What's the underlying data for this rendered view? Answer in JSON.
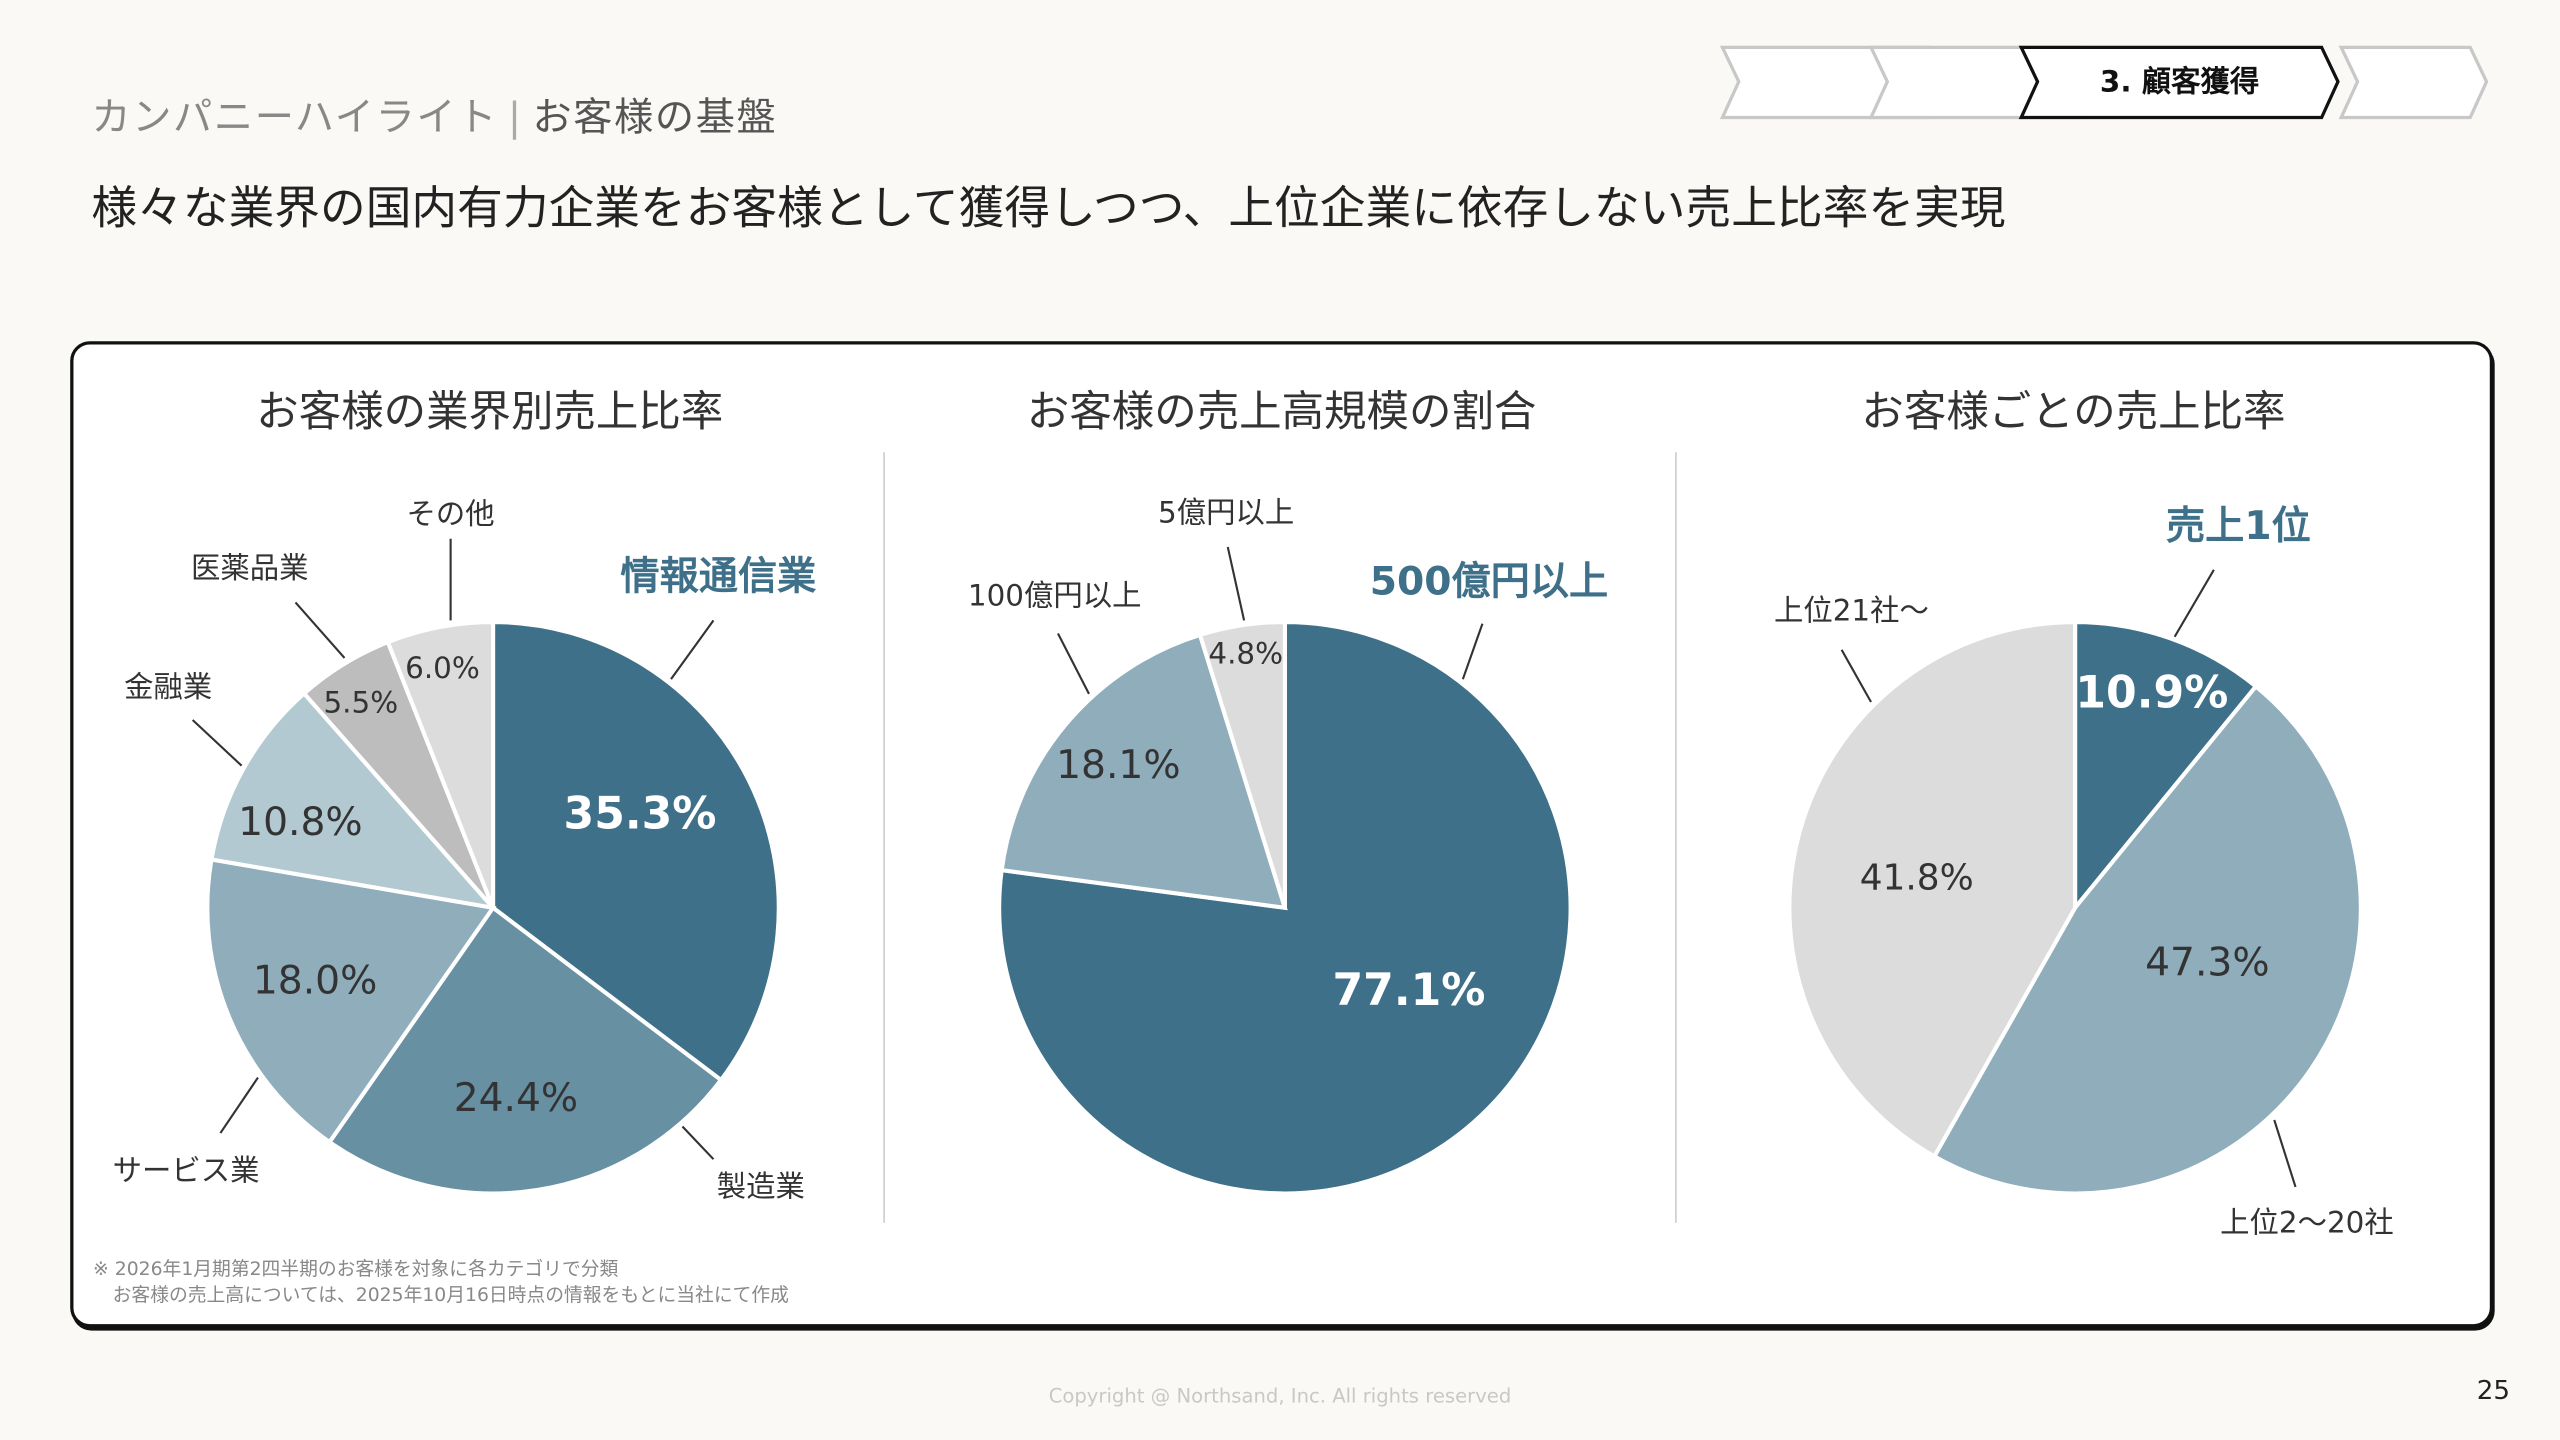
{
  "header": {
    "breadcrumb_section": "カンパニーハイライト",
    "breadcrumb_separator": "|",
    "breadcrumb_page": "お客様の基盤",
    "headline": "様々な業界の国内有力企業をお客様として獲得しつつ、上位企業に依存しない売上比率を実現",
    "steps": [
      {
        "label": "",
        "active": false
      },
      {
        "label": "",
        "active": false
      },
      {
        "label": "3. 顧客獲得",
        "active": true
      },
      {
        "label": "",
        "active": false
      }
    ]
  },
  "colors": {
    "dark": "#3f7089",
    "mid": "#6890a3",
    "light": "#8fadbb",
    "pale": "#b3c9d2",
    "gray": "#bdbdbd",
    "lightgray": "#dcdcdc",
    "accent_text": "#3f7089"
  },
  "chart_data": [
    {
      "type": "pie",
      "title": "お客様の業界別売上比率",
      "slices": [
        {
          "name": "情報通信業",
          "value": 35.3,
          "label": "35.3%",
          "color": "#3f7089"
        },
        {
          "name": "製造業",
          "value": 24.4,
          "label": "24.4%",
          "color": "#6890a3"
        },
        {
          "name": "サービス業",
          "value": 18.0,
          "label": "18.0%",
          "color": "#8fadbb"
        },
        {
          "name": "金融業",
          "value": 10.8,
          "label": "10.8%",
          "color": "#b3c9d2"
        },
        {
          "name": "医薬品業",
          "value": 5.5,
          "label": "5.5%",
          "color": "#bdbdbd"
        },
        {
          "name": "その他",
          "value": 6.0,
          "label": "6.0%",
          "color": "#dcdcdc"
        }
      ]
    },
    {
      "type": "pie",
      "title": "お客様の売上高規模の割合",
      "slices": [
        {
          "name": "500億円以上",
          "value": 77.1,
          "label": "77.1%",
          "color": "#3f7089"
        },
        {
          "name": "100億円以上",
          "value": 18.1,
          "label": "18.1%",
          "color": "#8fadbb"
        },
        {
          "name": "5億円以上",
          "value": 4.8,
          "label": "4.8%",
          "color": "#dcdcdc"
        }
      ]
    },
    {
      "type": "pie",
      "title": "お客様ごとの売上比率",
      "slices": [
        {
          "name": "売上1位",
          "value": 10.9,
          "label": "10.9%",
          "color": "#3f7089"
        },
        {
          "name": "上位2〜20社",
          "value": 47.3,
          "label": "47.3%",
          "color": "#8fadbb"
        },
        {
          "name": "上位21社〜",
          "value": 41.8,
          "label": "41.8%",
          "color": "#dcdcdc"
        }
      ]
    }
  ],
  "footnote": {
    "line1": "※ 2026年1月期第2四半期のお客様を対象に各カテゴリで分類",
    "line2": "お客様の売上高については、2025年10月16日時点の情報をもとに当社にて作成"
  },
  "footer": {
    "copyright": "Copyright @ Northsand, Inc. All rights reserved",
    "page_number": "25"
  }
}
